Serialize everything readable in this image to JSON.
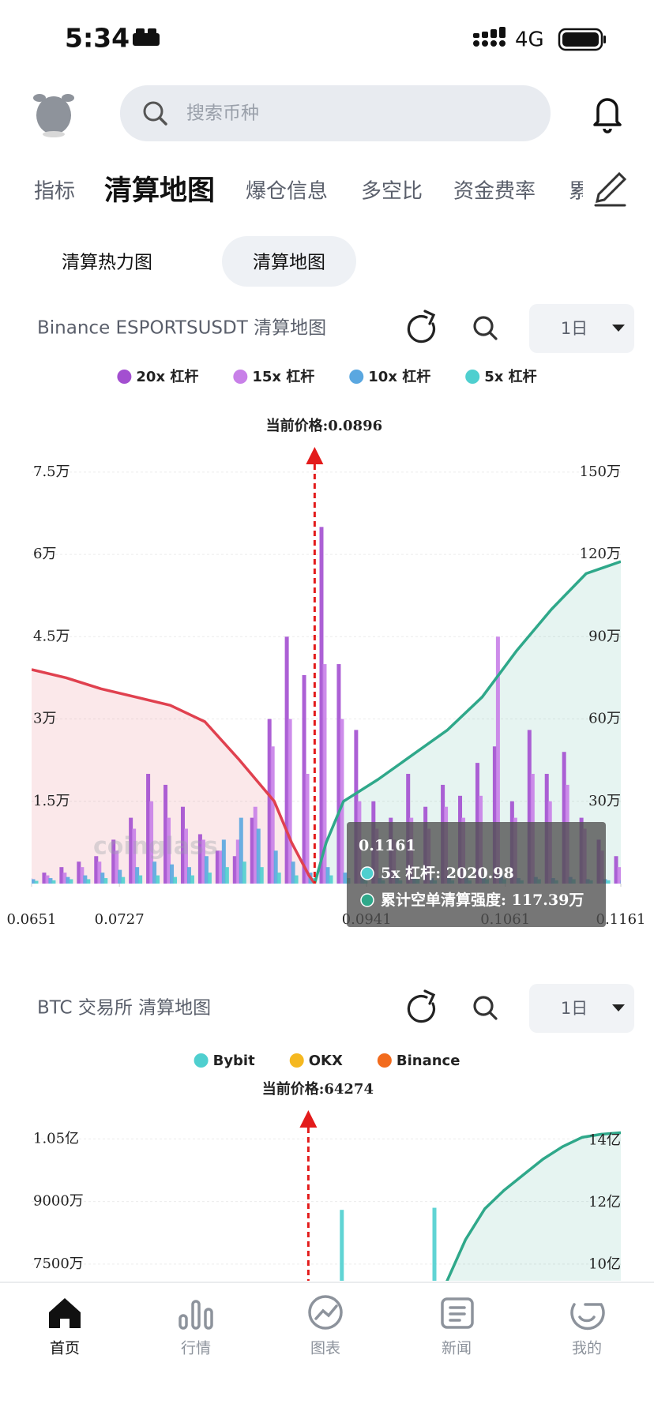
{
  "status_bar": {
    "time": "5:34",
    "network": "4G"
  },
  "search": {
    "placeholder": "搜索币种"
  },
  "tabs": [
    "指标",
    "清算地图",
    "爆仓信息",
    "多空比",
    "资金费率",
    "累"
  ],
  "subtabs": [
    "清算热力图",
    "清算地图"
  ],
  "nav": [
    "首页",
    "行情",
    "图表",
    "新闻",
    "我的"
  ],
  "chart_data": [
    {
      "type": "bar",
      "title": "Binance ESPORTSUSDT 清算地图",
      "period": "1日",
      "annotation": "当前价格:0.0896",
      "current_price": 0.0896,
      "watermark": "coinglass",
      "grid": true,
      "x": [
        0.0651,
        0.0666,
        0.0681,
        0.0696,
        0.0711,
        0.0726,
        0.0741,
        0.0756,
        0.0771,
        0.0786,
        0.0801,
        0.0816,
        0.0831,
        0.0846,
        0.0861,
        0.0876,
        0.0891,
        0.0906,
        0.0921,
        0.0936,
        0.0951,
        0.0966,
        0.0981,
        0.0996,
        0.1011,
        0.1026,
        0.1041,
        0.1056,
        0.1071,
        0.1086,
        0.1101,
        0.1116,
        0.1131,
        0.1146,
        0.1161
      ],
      "xlim": [
        0.0651,
        0.1161
      ],
      "xticks": [
        0.0651,
        0.0727,
        0.0941,
        0.1061,
        0.1161
      ],
      "ylim": [
        0,
        78000
      ],
      "yticks": [
        {
          "value": 15000,
          "label": "1.5万"
        },
        {
          "value": 30000,
          "label": "3万"
        },
        {
          "value": 45000,
          "label": "4.5万"
        },
        {
          "value": 60000,
          "label": "6万"
        },
        {
          "value": 75000,
          "label": "7.5万"
        }
      ],
      "y2lim": [
        0,
        1560000
      ],
      "y2ticks": [
        {
          "value": 300000,
          "label": "30万"
        },
        {
          "value": 600000,
          "label": "60万"
        },
        {
          "value": 900000,
          "label": "90万"
        },
        {
          "value": 1200000,
          "label": "120万"
        },
        {
          "value": 1500000,
          "label": "150万"
        }
      ],
      "series": [
        {
          "name": "20x 杠杆",
          "color": "#a34fd0",
          "values": [
            1500,
            2000,
            3000,
            4000,
            5000,
            8000,
            12000,
            20000,
            18000,
            14000,
            9000,
            6000,
            5000,
            12000,
            30000,
            45000,
            38000,
            65000,
            40000,
            28000,
            15000,
            12000,
            20000,
            14000,
            18000,
            16000,
            22000,
            25000,
            15000,
            28000,
            20000,
            24000,
            12000,
            8000,
            5000
          ]
        },
        {
          "name": "15x 杠杆",
          "color": "#c880e8",
          "values": [
            1000,
            1500,
            2000,
            3000,
            4000,
            6000,
            10000,
            15000,
            12000,
            10000,
            8000,
            6000,
            8000,
            14000,
            25000,
            30000,
            20000,
            40000,
            30000,
            15000,
            10000,
            8000,
            12000,
            10000,
            14000,
            12000,
            16000,
            45000,
            12000,
            20000,
            15000,
            18000,
            10000,
            6000,
            3000
          ]
        },
        {
          "name": "10x 杠杆",
          "color": "#5aa7e0",
          "values": [
            800,
            1000,
            1200,
            1500,
            2000,
            2500,
            3000,
            4000,
            3500,
            3000,
            5000,
            8000,
            12000,
            10000,
            6000,
            4000,
            2000,
            3000,
            2000,
            1500,
            1000,
            1000,
            1200,
            1000,
            1000,
            1000,
            1200,
            1500,
            1000,
            1200,
            1000,
            1200,
            800,
            800,
            600
          ]
        },
        {
          "name": "5x 杠杆",
          "color": "#4fcfcf",
          "values": [
            500,
            600,
            800,
            800,
            1000,
            1200,
            1500,
            1500,
            1200,
            1500,
            2000,
            3000,
            4000,
            3000,
            2000,
            1500,
            1000,
            1500,
            1000,
            800,
            600,
            600,
            800,
            600,
            600,
            600,
            800,
            800,
            600,
            800,
            600,
            800,
            600,
            600,
            2020.98
          ]
        },
        {
          "type": "area",
          "axis": "y2",
          "color": "#e0414f",
          "x": [
            0.0651,
            0.0681,
            0.0711,
            0.0741,
            0.0771,
            0.0801,
            0.0831,
            0.0861,
            0.0876,
            0.0891,
            0.0896
          ],
          "values": [
            780000,
            750000,
            710000,
            680000,
            650000,
            590000,
            450000,
            300000,
            150000,
            30000,
            0
          ]
        },
        {
          "type": "area",
          "axis": "y2",
          "color": "#2fa88a",
          "x": [
            0.0896,
            0.0906,
            0.0921,
            0.0951,
            0.0981,
            0.1011,
            0.1041,
            0.1071,
            0.1101,
            0.1131,
            0.1161
          ],
          "values": [
            0,
            150000,
            300000,
            380000,
            470000,
            560000,
            680000,
            850000,
            1000000,
            1130000,
            1173900
          ]
        }
      ],
      "tooltip": {
        "title": "0.1161",
        "rows": [
          {
            "color": "#4fcfcf",
            "text": "5x 杠杆: 2020.98"
          },
          {
            "color": "#2fa88a",
            "text": "累计空单清算强度: 117.39万"
          }
        ]
      }
    },
    {
      "type": "bar",
      "title": "BTC 交易所  清算地图",
      "period": "1日",
      "annotation": "当前价格:64274",
      "current_price": 64274,
      "grid": true,
      "x": [
        64840,
        66270
      ],
      "xlim": [
        60000,
        69100
      ],
      "ylim": [
        71000000,
        110000000
      ],
      "yticks": [
        {
          "value": 75000000,
          "label": "7500万"
        },
        {
          "value": 90000000,
          "label": "9000万"
        },
        {
          "value": 105000000,
          "label": "1.05亿"
        }
      ],
      "y2lim": [
        948000000,
        1472000000
      ],
      "y2ticks": [
        {
          "value": 1000000000,
          "label": "10亿"
        },
        {
          "value": 1200000000,
          "label": "12亿"
        },
        {
          "value": 1400000000,
          "label": "14亿"
        }
      ],
      "series": [
        {
          "name": "Bybit",
          "color": "#4fcfcf",
          "values": [
            88000000,
            88500000
          ]
        },
        {
          "name": "OKX",
          "color": "#f5b820",
          "values": [
            null,
            null
          ]
        },
        {
          "name": "Binance",
          "color": "#f26b1d",
          "values": [
            null,
            null
          ]
        },
        {
          "type": "area",
          "axis": "y2",
          "color": "#2fa88a",
          "x": [
            66400,
            66700,
            67000,
            67300,
            67600,
            67900,
            68200,
            68500,
            68800,
            69100
          ],
          "values": [
            940000000,
            1080000000,
            1180000000,
            1240000000,
            1290000000,
            1340000000,
            1380000000,
            1410000000,
            1420000000,
            1425000000
          ]
        }
      ]
    }
  ]
}
